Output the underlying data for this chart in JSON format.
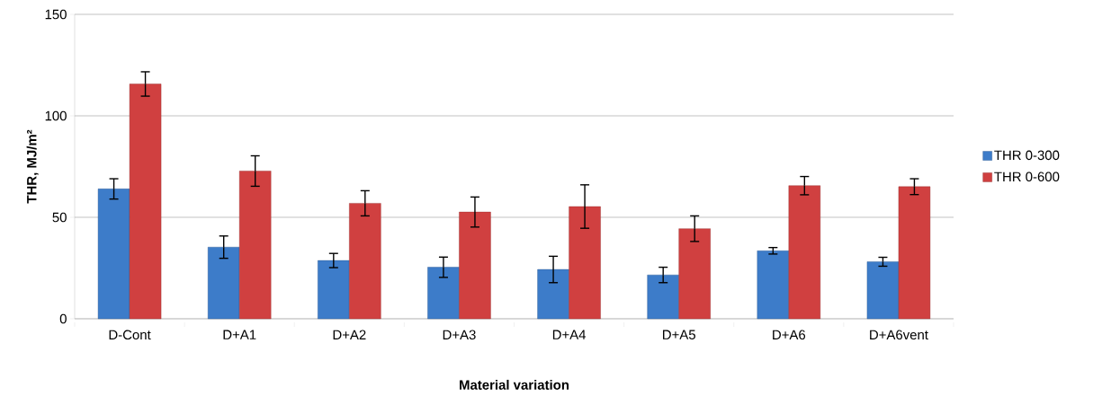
{
  "chart_data": {
    "type": "bar",
    "xlabel": "Material variation",
    "ylabel": "THR, MJ/m²",
    "categories": [
      "D-Cont",
      "D+A1",
      "D+A2",
      "D+A3",
      "D+A4",
      "D+A5",
      "D+A6",
      "D+A6vent"
    ],
    "series": [
      {
        "name": "THR 0-300",
        "color": "#3d7cc9",
        "values": [
          64,
          35.3,
          28.7,
          25.4,
          24.3,
          21.6,
          33.5,
          28.1
        ],
        "errors": [
          5,
          5.5,
          3.5,
          5,
          6.5,
          3.8,
          1.6,
          2.2
        ]
      },
      {
        "name": "THR 0-600",
        "color": "#d04040",
        "values": [
          115.7,
          72.8,
          56.9,
          52.6,
          55.3,
          44.4,
          65.6,
          65.1
        ],
        "errors": [
          6,
          7.5,
          6.2,
          7.4,
          10.7,
          6.3,
          4.5,
          3.9
        ]
      }
    ],
    "ylim": [
      0,
      150
    ],
    "yticks": [
      0,
      50,
      100,
      150
    ],
    "grid": "y",
    "legend": "right"
  }
}
